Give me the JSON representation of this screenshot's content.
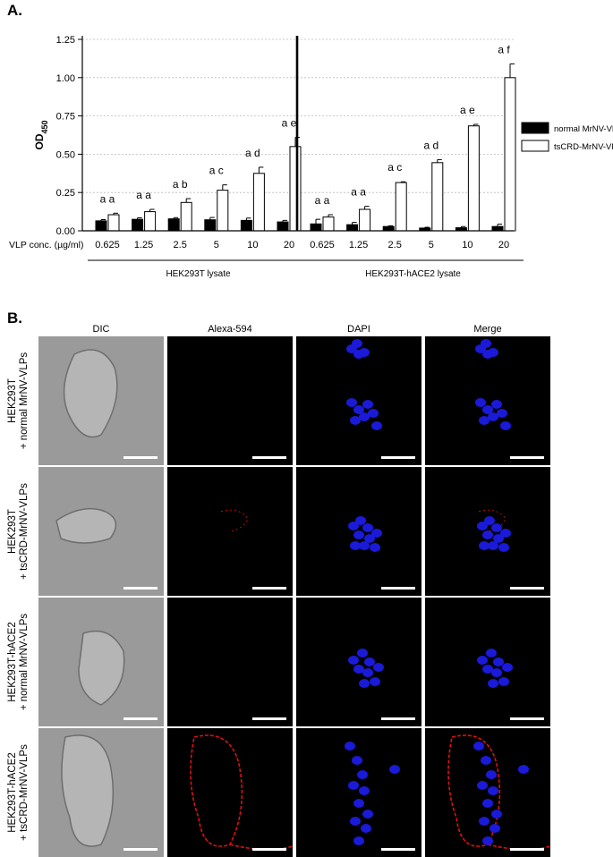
{
  "panel_a": {
    "letter": "A."
  },
  "panel_b": {
    "letter": "B.",
    "columns": [
      "DIC",
      "Alexa-594",
      "DAPI",
      "Merge"
    ],
    "rows": [
      {
        "line1": "HEK293T",
        "line2": "+ normal MrNV-VLPs"
      },
      {
        "line1": "HEK293T",
        "line2": "+ tsCRD-MrNV-VLPs"
      },
      {
        "line1": "HEK293T-hACE2",
        "line2": "+ normal MrNV-VLPs"
      },
      {
        "line1": "HEK293T-hACE2",
        "line2": "+ tsCRD-MrNV-VLPs"
      }
    ]
  },
  "chart_data": {
    "type": "bar",
    "title": "",
    "ylabel": "OD",
    "ylabel_sub": "450",
    "ylim": [
      0,
      1.25
    ],
    "yticks": [
      "0.00",
      "0.25",
      "0.50",
      "0.75",
      "1.00",
      "1.25"
    ],
    "grid": true,
    "legend_position": "right",
    "x_axis_label": "VLP conc. (µg/ml)",
    "categories": [
      "0.625",
      "1.25",
      "2.5",
      "5",
      "10",
      "20"
    ],
    "groups": [
      {
        "name": "HEK293T lysate",
        "series": [
          {
            "name": "normal MrNV-VLP",
            "color": "#000000",
            "values": [
              0.065,
              0.075,
              0.078,
              0.072,
              0.068,
              0.058
            ],
            "errors": [
              0.008,
              0.01,
              0.008,
              0.015,
              0.015,
              0.01
            ]
          },
          {
            "name": "tsCRD-MrNV-VLP",
            "color": "#ffffff",
            "values": [
              0.105,
              0.125,
              0.185,
              0.265,
              0.375,
              0.55
            ],
            "errors": [
              0.01,
              0.015,
              0.025,
              0.035,
              0.04,
              0.06
            ]
          }
        ],
        "annotations": [
          "a a",
          "a a",
          "a b",
          "a c",
          "a d",
          "a e"
        ]
      },
      {
        "name": "HEK293T-hACE2 lysate",
        "series": [
          {
            "name": "normal MrNV-VLP",
            "color": "#000000",
            "values": [
              0.045,
              0.04,
              0.028,
              0.018,
              0.02,
              0.028
            ],
            "errors": [
              0.03,
              0.015,
              0.005,
              0.005,
              0.008,
              0.015
            ]
          },
          {
            "name": "tsCRD-MrNV-VLP",
            "color": "#ffffff",
            "values": [
              0.09,
              0.14,
              0.315,
              0.445,
              0.685,
              1.0
            ],
            "errors": [
              0.015,
              0.02,
              0.005,
              0.02,
              0.01,
              0.09
            ]
          }
        ],
        "annotations": [
          "a a",
          "a a",
          "a c",
          "a d",
          "a e",
          "a f"
        ]
      }
    ]
  }
}
